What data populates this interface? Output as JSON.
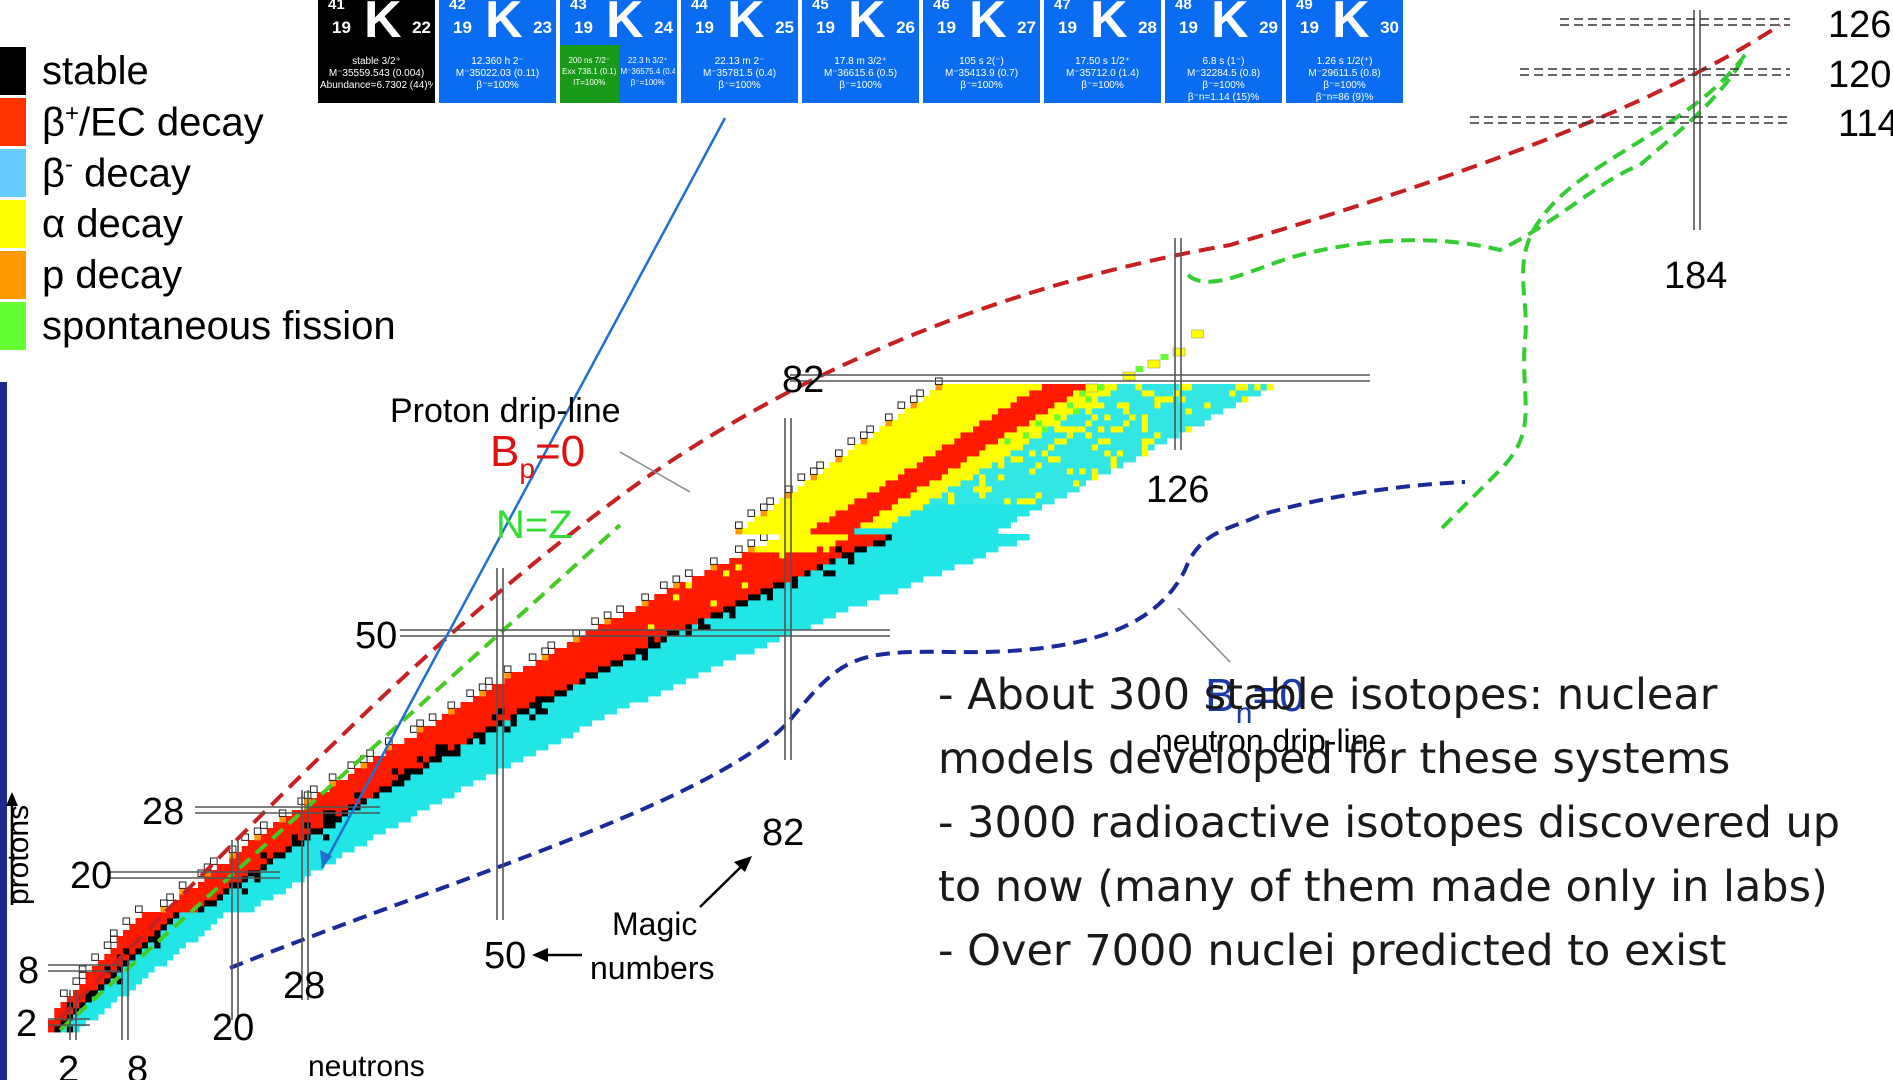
{
  "legend": [
    {
      "label": "stable",
      "color": "#000000"
    },
    {
      "label_pre": "β",
      "label_sup": "+",
      "label_post": "/EC decay",
      "color": "#ff3300"
    },
    {
      "label_pre": "β",
      "label_sup": "-",
      "label_post": " decay",
      "color": "#66ccff"
    },
    {
      "label": "α decay",
      "color": "#ffff00"
    },
    {
      "label": "p decay",
      "color": "#ff9900"
    },
    {
      "label": "spontaneous fission",
      "color": "#66ff33"
    }
  ],
  "isotopes": [
    {
      "a": "41",
      "z": "19",
      "sym": "K",
      "n": "22",
      "stable": true,
      "info": [
        "stable   3/2⁺",
        "M⁻35559.543 (0.004)",
        "Abundance=6.7302 (44)%"
      ]
    },
    {
      "a": "42",
      "z": "19",
      "sym": "K",
      "n": "23",
      "info": [
        "12.360 h  2⁻",
        "M⁻35022.03 (0.11)",
        "β⁻=100%"
      ]
    },
    {
      "a": "43",
      "z": "19",
      "sym": "K",
      "n": "24",
      "isomer": true,
      "info_left": [
        "200 ns 7/2⁻",
        "Exx 738.1 (0.1)",
        "IT=100%"
      ],
      "info_right": [
        "22.3 h 3/2⁺",
        "M⁻36575.4 (0.4)",
        "β⁻=100%"
      ]
    },
    {
      "a": "44",
      "z": "19",
      "sym": "K",
      "n": "25",
      "info": [
        "22.13 m  2⁻",
        "M⁻35781.5 (0.4)",
        "β⁻=100%"
      ]
    },
    {
      "a": "45",
      "z": "19",
      "sym": "K",
      "n": "26",
      "info": [
        "17.8 m  3/2⁺",
        "M⁻36615.6 (0.5)",
        "β⁻=100%"
      ]
    },
    {
      "a": "46",
      "z": "19",
      "sym": "K",
      "n": "27",
      "info": [
        "105 s  2(⁻)",
        "M⁻35413.9 (0.7)",
        "β⁻=100%"
      ]
    },
    {
      "a": "47",
      "z": "19",
      "sym": "K",
      "n": "28",
      "info": [
        "17.50 s  1/2⁺",
        "M⁻35712.0 (1.4)",
        "β⁻=100%"
      ]
    },
    {
      "a": "48",
      "z": "19",
      "sym": "K",
      "n": "29",
      "info": [
        "6.8 s  (1⁻)",
        "M⁻32284.5 (0.8)",
        "β⁻=100%",
        "β⁻n=1.14 (15)%"
      ]
    },
    {
      "a": "49",
      "z": "19",
      "sym": "K",
      "n": "30",
      "info": [
        "1.26 s  1/2(⁺)",
        "M⁻29611.5 (0.8)",
        "β⁻=100%",
        "β⁻n=86 (9)%"
      ]
    }
  ],
  "chart": {
    "proton_magic": [
      "2",
      "8",
      "20",
      "28",
      "50",
      "82",
      "114",
      "120",
      "126"
    ],
    "neutron_magic": [
      "2",
      "8",
      "20",
      "28",
      "50",
      "82",
      "126",
      "184"
    ],
    "axis_protons": "protons",
    "axis_neutrons": "neutrons",
    "proton_drip_title": "Proton drip-line",
    "bp_main": "B",
    "bp_sub": "p",
    "bp_eq": "=0",
    "nz_label": "N=Z",
    "bn_main": "B",
    "bn_sub": "n",
    "bn_eq": "=0",
    "neutron_drip_title": "neutron drip-line",
    "magic_label_1": "Magic",
    "magic_label_2": "numbers"
  },
  "bullets": [
    "- About 300 stable isotopes: nuclear",
    "models developed for these systems",
    "- 3000 radioactive isotopes discovered up",
    "to now (many of them made only in labs)",
    "- Over 7000 nuclei predicted to exist"
  ]
}
